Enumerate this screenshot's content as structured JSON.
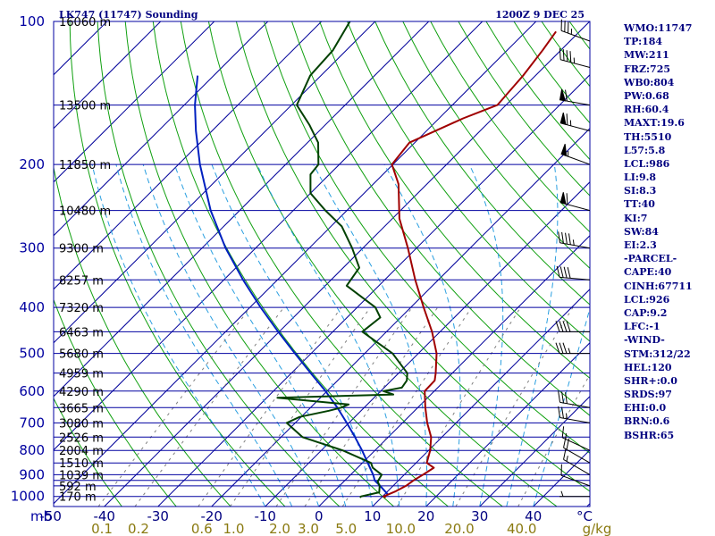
{
  "title": {
    "station": "LK747 (11747) Sounding",
    "time": "1200Z  9 DEC 25"
  },
  "chart_data": {
    "type": "skew-t",
    "x_unit": "°C",
    "axis_unit_label": "mb",
    "mixing_unit_label": "g/kg",
    "pressure_ticks": [
      100,
      200,
      300,
      400,
      500,
      600,
      700,
      800,
      900,
      1000
    ],
    "pressure_lines": [
      100,
      150,
      200,
      250,
      300,
      350,
      400,
      450,
      500,
      550,
      600,
      650,
      700,
      750,
      800,
      850,
      900,
      925,
      950,
      1000
    ],
    "height_labels": [
      {
        "p": 100,
        "h": "16060 m"
      },
      {
        "p": 150,
        "h": "13500 m"
      },
      {
        "p": 200,
        "h": "11850 m"
      },
      {
        "p": 250,
        "h": "10480 m"
      },
      {
        "p": 300,
        "h": "9300 m"
      },
      {
        "p": 350,
        "h": "8257 m"
      },
      {
        "p": 400,
        "h": "7320 m"
      },
      {
        "p": 450,
        "h": "6463 m"
      },
      {
        "p": 500,
        "h": "5680 m"
      },
      {
        "p": 550,
        "h": "4959 m"
      },
      {
        "p": 600,
        "h": "4290 m"
      },
      {
        "p": 650,
        "h": "3665 m"
      },
      {
        "p": 700,
        "h": "3080 m"
      },
      {
        "p": 750,
        "h": "2526 m"
      },
      {
        "p": 800,
        "h": "2004 m"
      },
      {
        "p": 850,
        "h": "1510 m"
      },
      {
        "p": 900,
        "h": "1039 m"
      },
      {
        "p": 950,
        "h": "592 m"
      },
      {
        "p": 1000,
        "h": "170 m"
      }
    ],
    "temp_ticks": [
      -50,
      -40,
      -30,
      -20,
      -10,
      0,
      10,
      20,
      30,
      40
    ],
    "mixing_ticks": [
      {
        "w": 0.1,
        "label": "0.1"
      },
      {
        "w": 0.2,
        "label": "0.2"
      },
      {
        "w": 0.6,
        "label": "0.6"
      },
      {
        "w": 1.0,
        "label": "1.0"
      },
      {
        "w": 2.0,
        "label": "2.0"
      },
      {
        "w": 3.0,
        "label": "3.0"
      },
      {
        "w": 5.0,
        "label": "5.0"
      },
      {
        "w": 10.0,
        "label": "10.0"
      },
      {
        "w": 20.0,
        "label": "20.0"
      },
      {
        "w": 40.0,
        "label": "40.0"
      }
    ],
    "temperature": [
      {
        "p": 1005,
        "t": 10.8
      },
      {
        "p": 1000,
        "t": 10.2
      },
      {
        "p": 975,
        "t": 11.5
      },
      {
        "p": 950,
        "t": 12.4
      },
      {
        "p": 925,
        "t": 12.8
      },
      {
        "p": 900,
        "t": 13.5
      },
      {
        "p": 870,
        "t": 14.2
      },
      {
        "p": 850,
        "t": 12.0
      },
      {
        "p": 800,
        "t": 10.3
      },
      {
        "p": 750,
        "t": 8.0
      },
      {
        "p": 700,
        "t": 4.6
      },
      {
        "p": 650,
        "t": 1.4
      },
      {
        "p": 600,
        "t": -1.8
      },
      {
        "p": 570,
        "t": -1.9
      },
      {
        "p": 550,
        "t": -3.1
      },
      {
        "p": 500,
        "t": -6.6
      },
      {
        "p": 450,
        "t": -11.5
      },
      {
        "p": 400,
        "t": -17.6
      },
      {
        "p": 350,
        "t": -24.3
      },
      {
        "p": 300,
        "t": -31.6
      },
      {
        "p": 260,
        "t": -38.7
      },
      {
        "p": 220,
        "t": -45.3
      },
      {
        "p": 200,
        "t": -50.2
      },
      {
        "p": 180,
        "t": -51.0
      },
      {
        "p": 160,
        "t": -45.5
      },
      {
        "p": 150,
        "t": -41.6
      },
      {
        "p": 130,
        "t": -42.3
      },
      {
        "p": 115,
        "t": -43.4
      },
      {
        "p": 105,
        "t": -44.4
      }
    ],
    "dewpoint": [
      {
        "p": 1005,
        "t": 6.0
      },
      {
        "p": 1000,
        "t": 6.0
      },
      {
        "p": 980,
        "t": 8.6
      },
      {
        "p": 950,
        "t": 7.5
      },
      {
        "p": 930,
        "t": 6.3
      },
      {
        "p": 900,
        "t": 5.8
      },
      {
        "p": 870,
        "t": 2.8
      },
      {
        "p": 850,
        "t": 1.6
      },
      {
        "p": 800,
        "t": -6.0
      },
      {
        "p": 750,
        "t": -16.0
      },
      {
        "p": 700,
        "t": -21.6
      },
      {
        "p": 680,
        "t": -20.3
      },
      {
        "p": 660,
        "t": -16.0
      },
      {
        "p": 650,
        "t": -14.3
      },
      {
        "p": 640,
        "t": -13.5
      },
      {
        "p": 620,
        "t": -28.0
      },
      {
        "p": 610,
        "t": -7.0
      },
      {
        "p": 600,
        "t": -9.5
      },
      {
        "p": 590,
        "t": -6.7
      },
      {
        "p": 570,
        "t": -7.1
      },
      {
        "p": 550,
        "t": -8.4
      },
      {
        "p": 500,
        "t": -14.8
      },
      {
        "p": 450,
        "t": -24.5
      },
      {
        "p": 420,
        "t": -23.8
      },
      {
        "p": 400,
        "t": -26.6
      },
      {
        "p": 360,
        "t": -36.0
      },
      {
        "p": 330,
        "t": -37.0
      },
      {
        "p": 300,
        "t": -42.0
      },
      {
        "p": 270,
        "t": -48.0
      },
      {
        "p": 250,
        "t": -54.0
      },
      {
        "p": 230,
        "t": -60.0
      },
      {
        "p": 210,
        "t": -63.5
      },
      {
        "p": 200,
        "t": -63.9
      },
      {
        "p": 180,
        "t": -68.0
      },
      {
        "p": 165,
        "t": -73.0
      },
      {
        "p": 150,
        "t": -79.0
      },
      {
        "p": 130,
        "t": -82.0
      },
      {
        "p": 115,
        "t": -82.5
      },
      {
        "p": 100,
        "t": -84.7
      }
    ],
    "parcel": [
      {
        "p": 990,
        "t": 10.6
      },
      {
        "p": 950,
        "t": 7.6
      },
      {
        "p": 926,
        "t": 5.6
      },
      {
        "p": 900,
        "t": 4.2
      },
      {
        "p": 850,
        "t": 1.0
      },
      {
        "p": 800,
        "t": -2.4
      },
      {
        "p": 750,
        "t": -6.2
      },
      {
        "p": 700,
        "t": -10.4
      },
      {
        "p": 650,
        "t": -15.0
      },
      {
        "p": 600,
        "t": -20.3
      },
      {
        "p": 550,
        "t": -26.4
      },
      {
        "p": 500,
        "t": -33.0
      },
      {
        "p": 450,
        "t": -40.2
      },
      {
        "p": 400,
        "t": -48.0
      },
      {
        "p": 350,
        "t": -56.4
      },
      {
        "p": 300,
        "t": -65.6
      },
      {
        "p": 250,
        "t": -75.4
      },
      {
        "p": 200,
        "t": -86.0
      },
      {
        "p": 170,
        "t": -93.0
      },
      {
        "p": 150,
        "t": -98.0
      },
      {
        "p": 130,
        "t": -103.0
      }
    ],
    "wind_barbs": [
      {
        "p": 1000,
        "dir": 270,
        "kt": 5
      },
      {
        "p": 950,
        "dir": 290,
        "kt": 10
      },
      {
        "p": 900,
        "dir": 300,
        "kt": 15
      },
      {
        "p": 850,
        "dir": 300,
        "kt": 20
      },
      {
        "p": 800,
        "dir": 295,
        "kt": 15
      },
      {
        "p": 700,
        "dir": 280,
        "kt": 25
      },
      {
        "p": 650,
        "dir": 280,
        "kt": 30
      },
      {
        "p": 500,
        "dir": 270,
        "kt": 35
      },
      {
        "p": 450,
        "dir": 270,
        "kt": 40
      },
      {
        "p": 350,
        "dir": 275,
        "kt": 40
      },
      {
        "p": 300,
        "dir": 280,
        "kt": 45
      },
      {
        "p": 250,
        "dir": 285,
        "kt": 60
      },
      {
        "p": 200,
        "dir": 290,
        "kt": 55
      },
      {
        "p": 170,
        "dir": 285,
        "kt": 65
      },
      {
        "p": 150,
        "dir": 280,
        "kt": 60
      },
      {
        "p": 125,
        "dir": 285,
        "kt": 45
      },
      {
        "p": 110,
        "dir": 290,
        "kt": 35
      }
    ]
  },
  "indices": [
    "WMO:11747",
    "TP:184",
    "MW:211",
    "FRZ:725",
    "WB0:804",
    "PW:0.68",
    "RH:60.4",
    "MAXT:19.6",
    "TH:5510",
    "L57:5.8",
    "LCL:986",
    "LI:9.8",
    "SI:8.3",
    "TT:40",
    "KI:7",
    "SW:84",
    "EI:2.3",
    "-PARCEL-",
    "CAPE:40",
    "CINH:67711",
    "LCL:926",
    "CAP:9.2",
    "LFC:-1",
    "-WIND-",
    "STM:312/22",
    "HEL:120",
    "SHR+:0.0",
    "SRDS:97",
    "EHI:0.0",
    "BRN:0.6",
    "BSHR:65"
  ],
  "colors": {
    "isobar": "#0000a0",
    "isotherm": "#00009a",
    "dry_adiabat": "#10a010",
    "moist_adiabat": "#2a9fe0",
    "mixing_ratio": "#808080",
    "temperature": "#a00000",
    "dewpoint": "#004000",
    "parcel": "#0020c0",
    "barb": "#000000"
  }
}
